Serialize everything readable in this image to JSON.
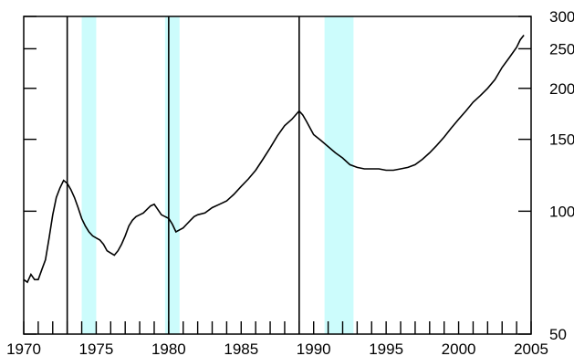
{
  "chart_data": {
    "type": "line",
    "title": "",
    "xlabel": "",
    "ylabel": "",
    "x_axis": {
      "min": 1970,
      "max": 2005,
      "tick_labels": [
        "1970",
        "1975",
        "1980",
        "1985",
        "1990",
        "1995",
        "2000",
        "2005"
      ]
    },
    "y_axis": {
      "scale": "log",
      "min": 50,
      "max": 300,
      "tick_labels": [
        "50",
        "100",
        "150",
        "200",
        "250",
        "300"
      ]
    },
    "grid": false,
    "legend": "none",
    "recession_bands": [
      {
        "start": 1974.0,
        "end": 1975.0
      },
      {
        "start": 1979.75,
        "end": 1980.75
      },
      {
        "start": 1990.75,
        "end": 1992.75
      }
    ],
    "peak_markers": [
      1973.0,
      1980.0,
      1989.0
    ],
    "series": [
      {
        "x": [
          1970.0,
          1970.25,
          1970.5,
          1970.75,
          1971.0,
          1971.25,
          1971.5,
          1971.75,
          1972.0,
          1972.25,
          1972.5,
          1972.75,
          1973.0,
          1973.25,
          1973.5,
          1973.75,
          1974.0,
          1974.25,
          1974.5,
          1974.75,
          1975.0,
          1975.25,
          1975.5,
          1975.75,
          1976.0,
          1976.25,
          1976.5,
          1976.75,
          1977.0,
          1977.25,
          1977.5,
          1977.75,
          1978.0,
          1978.25,
          1978.5,
          1978.75,
          1979.0,
          1979.25,
          1979.5,
          1979.75,
          1980.0,
          1980.25,
          1980.5,
          1980.75,
          1981.0,
          1981.25,
          1981.5,
          1981.75,
          1982.0,
          1982.5,
          1983.0,
          1983.5,
          1984.0,
          1984.5,
          1985.0,
          1985.5,
          1986.0,
          1986.5,
          1987.0,
          1987.5,
          1988.0,
          1988.5,
          1988.75,
          1989.0,
          1989.25,
          1989.5,
          1989.75,
          1990.0,
          1990.5,
          1991.0,
          1991.5,
          1992.0,
          1992.5,
          1993.0,
          1993.5,
          1994.0,
          1994.5,
          1995.0,
          1995.5,
          1996.0,
          1996.5,
          1997.0,
          1997.5,
          1998.0,
          1998.5,
          1999.0,
          1999.5,
          2000.0,
          2000.5,
          2001.0,
          2001.5,
          2002.0,
          2002.5,
          2003.0,
          2003.5,
          2004.0,
          2004.25,
          2004.5
        ],
        "values": [
          68,
          67,
          70,
          68,
          68,
          72,
          76,
          86,
          98,
          108,
          114,
          119,
          117,
          113,
          108,
          102,
          96,
          92,
          89,
          87,
          86,
          85,
          83,
          80,
          79,
          78,
          80,
          83,
          87,
          92,
          95,
          97,
          98,
          99,
          101,
          103,
          104,
          101,
          98,
          97,
          96,
          93,
          89,
          90,
          91,
          93,
          95,
          97,
          98,
          99,
          102,
          104,
          106,
          110,
          115,
          120,
          126,
          134,
          143,
          153,
          162,
          168,
          172,
          176,
          172,
          166,
          160,
          154,
          149,
          144,
          139,
          135,
          130,
          128,
          127,
          127,
          127,
          126,
          126,
          127,
          128,
          130,
          134,
          139,
          145,
          152,
          160,
          168,
          176,
          185,
          192,
          200,
          210,
          225,
          238,
          252,
          263,
          270
        ]
      }
    ]
  }
}
